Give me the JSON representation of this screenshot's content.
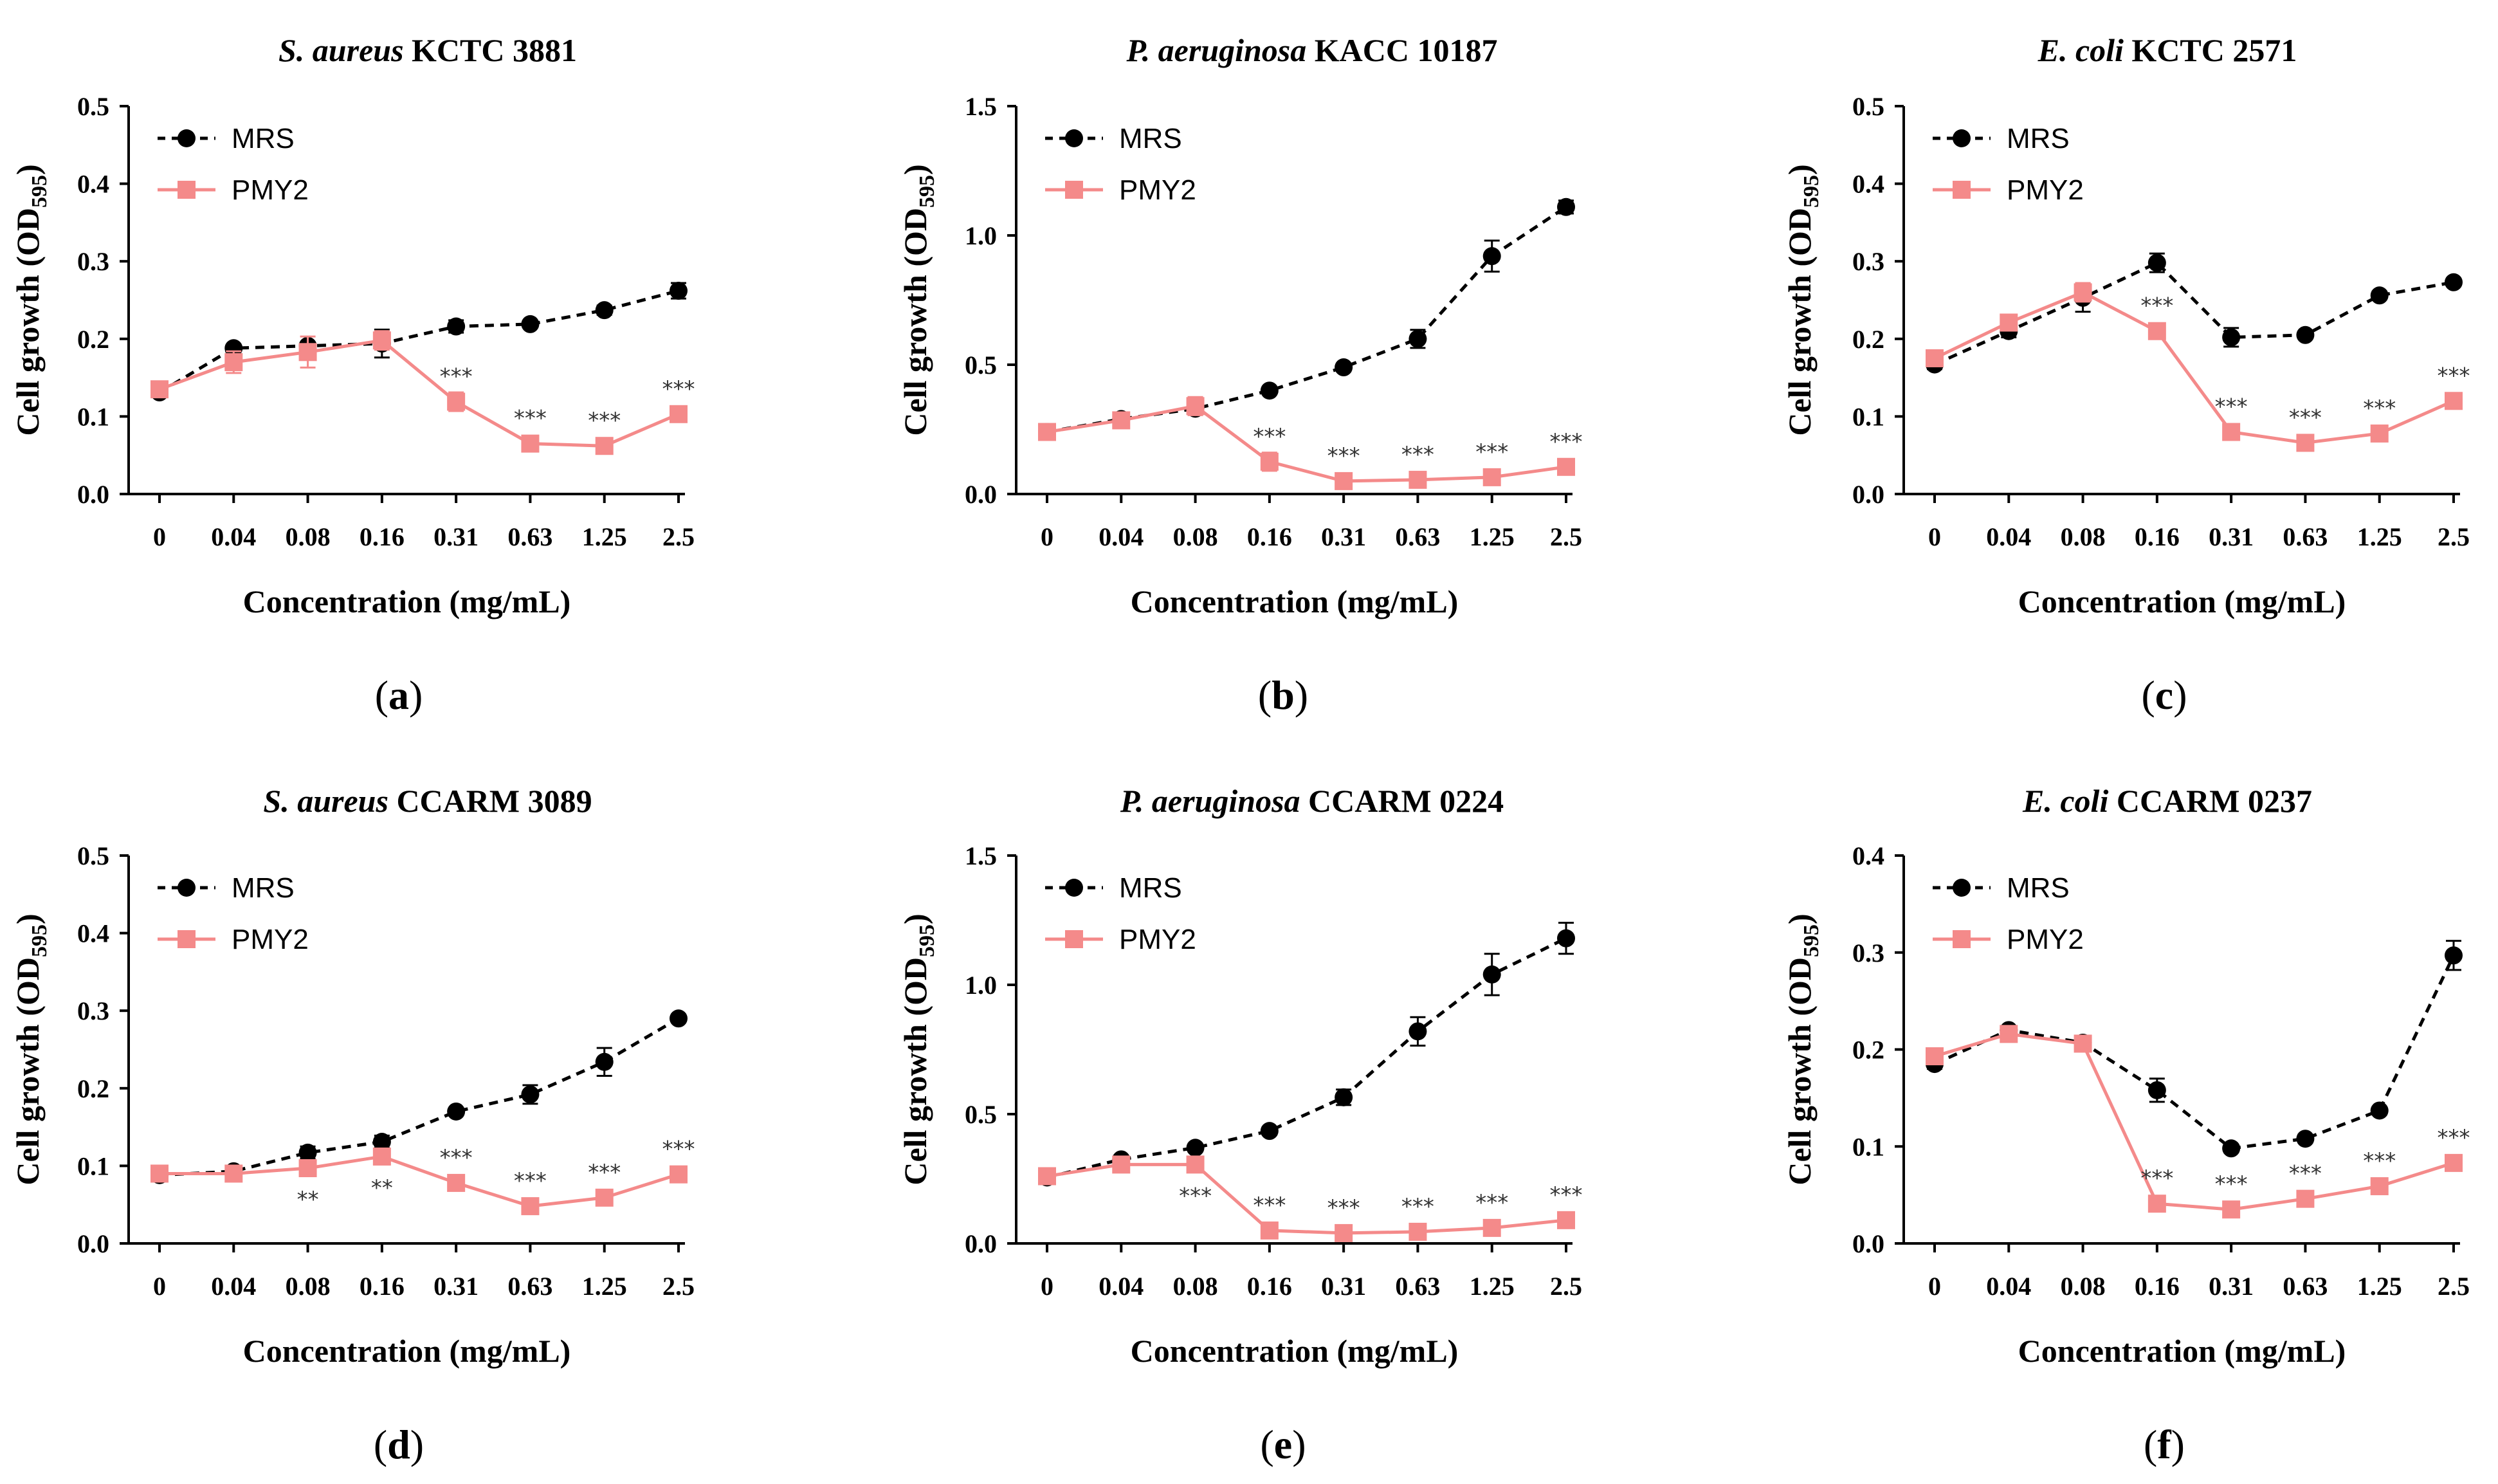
{
  "colors": {
    "mrs": "#000000",
    "pmy2": "#f48a8a"
  },
  "chart_data": [
    {
      "type": "line",
      "title": {
        "species": "S. aureus",
        "strain": "KCTC 3881"
      },
      "panel_label": "a",
      "xlabel": "Concentration (mg/mL)",
      "ylabel": {
        "text": "Cell growth (OD",
        "sub": "595",
        "close": ")"
      },
      "categories": [
        "0",
        "0.04",
        "0.08",
        "0.16",
        "0.31",
        "0.63",
        "1.25",
        "2.5"
      ],
      "ylim": [
        0,
        0.5
      ],
      "yticks": [
        "0.0",
        "0.1",
        "0.2",
        "0.3",
        "0.4",
        "0.5"
      ],
      "series": [
        {
          "name": "MRS",
          "values": [
            0.131,
            0.188,
            0.191,
            0.194,
            0.216,
            0.219,
            0.237,
            0.262
          ],
          "errors": [
            0.006,
            0.004,
            0.004,
            0.018,
            0.008,
            0.004,
            0.006,
            0.01
          ]
        },
        {
          "name": "PMY2",
          "values": [
            0.135,
            0.17,
            0.183,
            0.198,
            0.119,
            0.065,
            0.062,
            0.103
          ],
          "errors": [
            0.006,
            0.014,
            0.02,
            0.012,
            0.012,
            0.004,
            0.004,
            0.005
          ]
        }
      ],
      "significance": [
        "",
        "",
        "",
        "",
        "***",
        "***",
        "***",
        "***"
      ],
      "legend_position": "top-left"
    },
    {
      "type": "line",
      "title": {
        "species": "P. aeruginosa",
        "strain": "KACC 10187"
      },
      "panel_label": "b",
      "xlabel": "Concentration (mg/mL)",
      "ylabel": {
        "text": "Cell growth (OD",
        "sub": "595",
        "close": ")"
      },
      "categories": [
        "0",
        "0.04",
        "0.08",
        "0.16",
        "0.31",
        "0.63",
        "1.25",
        "2.5"
      ],
      "ylim": [
        0,
        1.5
      ],
      "yticks": [
        "0.0",
        "0.5",
        "1.0",
        "1.5"
      ],
      "series": [
        {
          "name": "MRS",
          "values": [
            0.24,
            0.29,
            0.33,
            0.4,
            0.49,
            0.6,
            0.92,
            1.11
          ],
          "errors": [
            0.015,
            0.012,
            0.012,
            0.012,
            0.015,
            0.035,
            0.06,
            0.025
          ]
        },
        {
          "name": "PMY2",
          "values": [
            0.24,
            0.285,
            0.34,
            0.125,
            0.05,
            0.055,
            0.065,
            0.105
          ],
          "errors": [
            0.015,
            0.015,
            0.035,
            0.035,
            0.012,
            0.01,
            0.01,
            0.012
          ]
        }
      ],
      "significance": [
        "",
        "",
        "",
        "***",
        "***",
        "***",
        "***",
        "***"
      ],
      "legend_position": "top-left"
    },
    {
      "type": "line",
      "title": {
        "species": "E. coli",
        "strain": "KCTC 2571"
      },
      "panel_label": "c",
      "xlabel": "Concentration (mg/mL)",
      "ylabel": {
        "text": "Cell growth (OD",
        "sub": "595",
        "close": ")"
      },
      "categories": [
        "0",
        "0.04",
        "0.08",
        "0.16",
        "0.31",
        "0.63",
        "1.25",
        "2.5"
      ],
      "ylim": [
        0,
        0.5
      ],
      "yticks": [
        "0.0",
        "0.1",
        "0.2",
        "0.3",
        "0.4",
        "0.5"
      ],
      "series": [
        {
          "name": "MRS",
          "values": [
            0.167,
            0.21,
            0.253,
            0.298,
            0.202,
            0.205,
            0.256,
            0.273
          ],
          "errors": [
            0.006,
            0.008,
            0.018,
            0.012,
            0.012,
            0.004,
            0.005,
            0.005
          ]
        },
        {
          "name": "PMY2",
          "values": [
            0.175,
            0.221,
            0.26,
            0.21,
            0.08,
            0.066,
            0.078,
            0.12
          ],
          "errors": [
            0.006,
            0.006,
            0.012,
            0.008,
            0.004,
            0.004,
            0.004,
            0.005
          ]
        }
      ],
      "significance": [
        "",
        "",
        "",
        "***",
        "***",
        "***",
        "***",
        "***"
      ],
      "legend_position": "top-left"
    },
    {
      "type": "line",
      "title": {
        "species": "S. aureus",
        "strain": "CCARM 3089"
      },
      "panel_label": "d",
      "xlabel": "Concentration (mg/mL)",
      "ylabel": {
        "text": "Cell growth (OD",
        "sub": "595",
        "close": ")"
      },
      "categories": [
        "0",
        "0.04",
        "0.08",
        "0.16",
        "0.31",
        "0.63",
        "1.25",
        "2.5"
      ],
      "ylim": [
        0,
        0.5
      ],
      "yticks": [
        "0.0",
        "0.1",
        "0.2",
        "0.3",
        "0.4",
        "0.5"
      ],
      "series": [
        {
          "name": "MRS",
          "values": [
            0.088,
            0.093,
            0.117,
            0.131,
            0.17,
            0.192,
            0.234,
            0.29
          ],
          "errors": [
            0.004,
            0.004,
            0.008,
            0.008,
            0.004,
            0.012,
            0.018,
            0.005
          ]
        },
        {
          "name": "PMY2",
          "values": [
            0.09,
            0.09,
            0.097,
            0.112,
            0.078,
            0.048,
            0.059,
            0.089
          ],
          "errors": [
            0.004,
            0.004,
            0.004,
            0.006,
            0.004,
            0.004,
            0.004,
            0.004
          ]
        }
      ],
      "significance": [
        "",
        "",
        "**",
        "**",
        "***",
        "***",
        "***",
        "***"
      ],
      "legend_position": "top-left"
    },
    {
      "type": "line",
      "title": {
        "species": "P. aeruginosa",
        "strain": "CCARM 0224"
      },
      "panel_label": "e",
      "xlabel": "Concentration (mg/mL)",
      "ylabel": {
        "text": "Cell growth (OD",
        "sub": "595",
        "close": ")"
      },
      "categories": [
        "0",
        "0.04",
        "0.08",
        "0.16",
        "0.31",
        "0.63",
        "1.25",
        "2.5"
      ],
      "ylim": [
        0,
        1.5
      ],
      "yticks": [
        "0.0",
        "0.5",
        "1.0",
        "1.5"
      ],
      "series": [
        {
          "name": "MRS",
          "values": [
            0.255,
            0.325,
            0.37,
            0.435,
            0.565,
            0.82,
            1.04,
            1.18
          ],
          "errors": [
            0.015,
            0.015,
            0.015,
            0.015,
            0.03,
            0.055,
            0.08,
            0.06
          ]
        },
        {
          "name": "PMY2",
          "values": [
            0.26,
            0.305,
            0.305,
            0.05,
            0.04,
            0.045,
            0.06,
            0.09
          ],
          "errors": [
            0.015,
            0.012,
            0.012,
            0.008,
            0.008,
            0.008,
            0.008,
            0.008
          ]
        }
      ],
      "significance": [
        "",
        "",
        "***",
        "***",
        "***",
        "***",
        "***",
        "***"
      ],
      "legend_position": "top-left"
    },
    {
      "type": "line",
      "title": {
        "species": "E. coli",
        "strain": "CCARM 0237"
      },
      "panel_label": "f",
      "xlabel": "Concentration (mg/mL)",
      "ylabel": {
        "text": "Cell growth (OD",
        "sub": "595",
        "close": ")"
      },
      "categories": [
        "0",
        "0.04",
        "0.08",
        "0.16",
        "0.31",
        "0.63",
        "1.25",
        "2.5"
      ],
      "ylim": [
        0,
        0.4
      ],
      "yticks": [
        "0.0",
        "0.1",
        "0.2",
        "0.3",
        "0.4"
      ],
      "series": [
        {
          "name": "MRS",
          "values": [
            0.185,
            0.22,
            0.207,
            0.158,
            0.098,
            0.108,
            0.137,
            0.297
          ],
          "errors": [
            0.005,
            0.004,
            0.005,
            0.012,
            0.004,
            0.004,
            0.004,
            0.015
          ]
        },
        {
          "name": "PMY2",
          "values": [
            0.193,
            0.216,
            0.206,
            0.041,
            0.035,
            0.046,
            0.059,
            0.083
          ],
          "errors": [
            0.005,
            0.004,
            0.004,
            0.004,
            0.004,
            0.004,
            0.004,
            0.004
          ]
        }
      ],
      "significance": [
        "",
        "",
        "",
        "***",
        "***",
        "***",
        "***",
        "***"
      ],
      "legend_position": "top-left"
    }
  ]
}
